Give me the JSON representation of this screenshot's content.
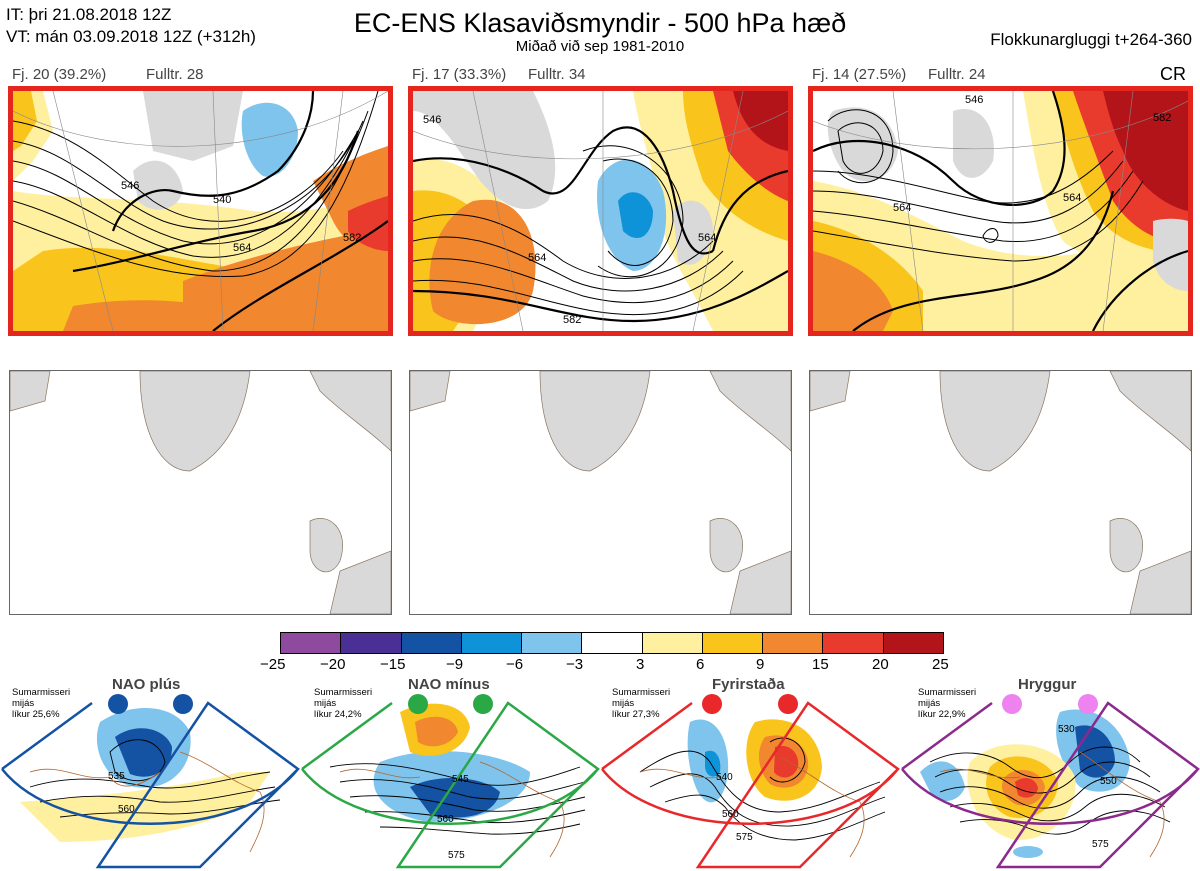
{
  "header": {
    "it_line": "IT: þri 21.08.2018 12Z",
    "vt_line": "VT: mán 03.09.2018 12Z  (+312h)",
    "title": "EC-ENS Klasaviðsmyndir - 500 hPa hæð",
    "subtitle": "Miðað við sep 1981-2010",
    "window": "Flokkunargluggi t+264-360",
    "cr": "CR"
  },
  "panels": [
    {
      "label": "Fj. 20 (39.2%)",
      "rep": "Fulltr. 28",
      "contours": [
        "540",
        "546",
        "564",
        "582"
      ]
    },
    {
      "label": "Fj. 17 (33.3%)",
      "rep": "Fulltr. 34",
      "contours": [
        "546",
        "564",
        "582",
        "564"
      ]
    },
    {
      "label": "Fj. 14 (27.5%)",
      "rep": "Fulltr. 24",
      "contours": [
        "546",
        "564",
        "582",
        "564"
      ]
    }
  ],
  "colorbar": {
    "ticks": [
      "−25",
      "−20",
      "−15",
      "−9",
      "−6",
      "−3",
      "3",
      "6",
      "9",
      "15",
      "20",
      "25"
    ],
    "colors": [
      "#8e4a9e",
      "#4a2f94",
      "#1452a3",
      "#0e93d8",
      "#7fc4ec",
      "#ffffff",
      "#fff0a0",
      "#f9c51c",
      "#f1872f",
      "#e83a2d",
      "#b3141a"
    ]
  },
  "clusters": [
    {
      "name": "NAO plús",
      "info": [
        "Sumarmisseri",
        "mijás",
        "líkur 25,6%"
      ],
      "border": "#1452a3",
      "dots": "#1452a3",
      "contours": [
        "535",
        "560"
      ]
    },
    {
      "name": "NAO mínus",
      "info": [
        "Sumarmisseri",
        "mijás",
        "líkur 24,2%"
      ],
      "border": "#2aa845",
      "dots": "#2aa845",
      "contours": [
        "545",
        "560",
        "575"
      ]
    },
    {
      "name": "Fyrirstaða",
      "info": [
        "Sumarmisseri",
        "mijás",
        "líkur 27,3%"
      ],
      "border": "#e8282b",
      "dots": "#e8282b",
      "contours": [
        "540",
        "560",
        "575"
      ]
    },
    {
      "name": "Hryggur",
      "info": [
        "Sumarmisseri",
        "mijás",
        "líkur 22,9%"
      ],
      "border": "#8b2a8c",
      "dots": "#ee82ee",
      "contours": [
        "530",
        "550",
        "575"
      ]
    }
  ]
}
